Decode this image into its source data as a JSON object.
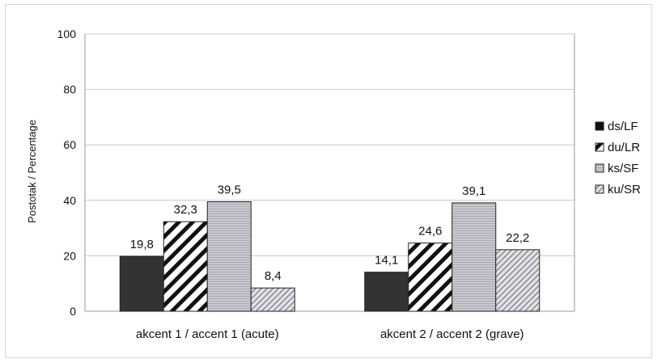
{
  "chart_data": {
    "type": "bar",
    "title": "",
    "xlabel": "",
    "ylabel": "Postotak / Percentage",
    "ylim": [
      0,
      100
    ],
    "yticks": [
      0,
      20,
      40,
      60,
      80,
      100
    ],
    "grid": true,
    "legend_position": "right",
    "categories": [
      "akcent 1 / accent 1 (acute)",
      "akcent 2 / accent 2 (grave)"
    ],
    "series": [
      {
        "name": "ds/LF",
        "values": [
          19.8,
          14.1
        ],
        "value_labels": [
          "19,8",
          "14,1"
        ],
        "color": "#333333",
        "pattern": "solid"
      },
      {
        "name": "du/LR",
        "values": [
          32.3,
          24.6
        ],
        "value_labels": [
          "32,3",
          "24,6"
        ],
        "color": "#ffffff",
        "pattern": "wide-diagonal"
      },
      {
        "name": "ks/SF",
        "values": [
          39.5,
          39.1
        ],
        "value_labels": [
          "39,5",
          "39,1"
        ],
        "color": "#c4c4cc",
        "pattern": "fine-horizontal"
      },
      {
        "name": "ku/SR",
        "values": [
          8.4,
          22.2
        ],
        "value_labels": [
          "8,4",
          "22,2"
        ],
        "color": "#d8d8dc",
        "pattern": "fine-diagonal"
      }
    ]
  }
}
